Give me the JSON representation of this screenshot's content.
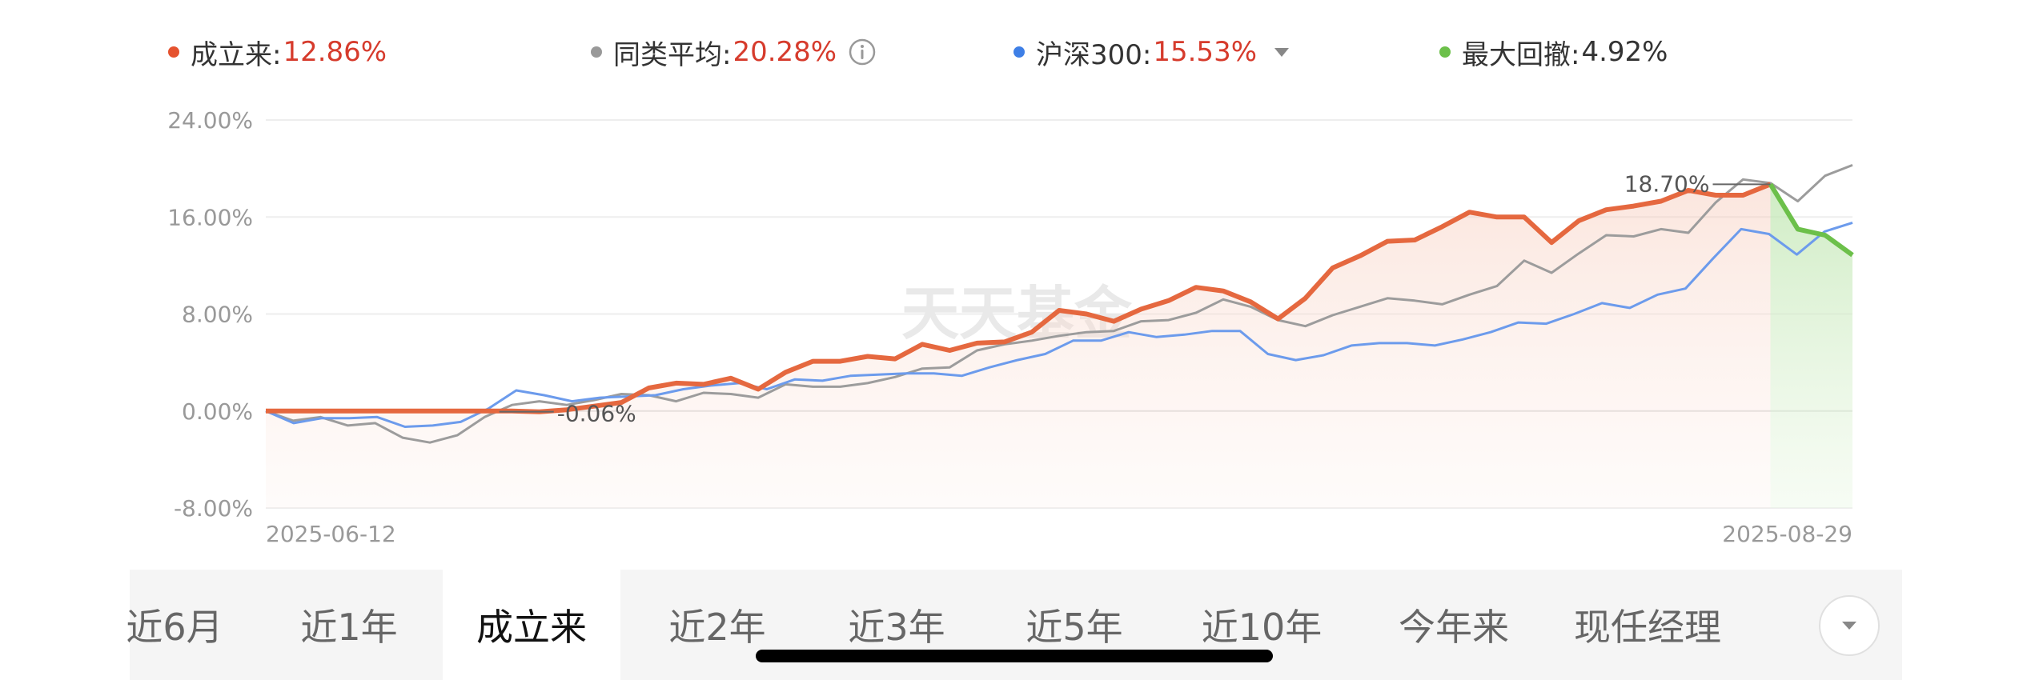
{
  "legend": {
    "fund": {
      "label": "成立来:",
      "value": "12.86%",
      "color": "#e5522f",
      "value_color": "#d63b2c"
    },
    "peer": {
      "label": "同类平均:",
      "value": "20.28%",
      "color": "#999999",
      "value_color": "#d63b2c"
    },
    "index": {
      "label": "沪深300:",
      "value": "15.53%",
      "color": "#3e7fe6",
      "value_color": "#d63b2c"
    },
    "drawdown": {
      "label": "最大回撤:",
      "value": "4.92%",
      "color": "#6cc04a",
      "value_color": "#333333"
    }
  },
  "watermark": "天天基金",
  "chart_data": {
    "type": "line",
    "start_date": "2025-06-12",
    "end_date": "2025-08-29",
    "x_labels": [
      "2025-06-12",
      "2025-08-29"
    ],
    "ylim": [
      -8,
      24
    ],
    "y_ticks": [
      24,
      16,
      8,
      0,
      -8
    ],
    "y_tick_labels": [
      "24.00%",
      "16.00%",
      "8.00%",
      "0.00%",
      "-8.00%"
    ],
    "grid": true,
    "series": [
      {
        "name": "成立来",
        "color": "#e5683f",
        "values": [
          0,
          0,
          0,
          0,
          0,
          0,
          0,
          0,
          0,
          0,
          -0.06,
          0.1,
          0.4,
          0.7,
          1.9,
          2.3,
          2.2,
          2.7,
          1.8,
          3.2,
          4.1,
          4.1,
          4.5,
          4.3,
          5.5,
          5.0,
          5.6,
          5.7,
          6.5,
          8.3,
          8.0,
          7.4,
          8.4,
          9.1,
          10.2,
          9.9,
          9.0,
          7.6,
          9.3,
          11.8,
          12.8,
          14.0,
          14.1,
          15.2,
          16.4,
          16.0,
          16.0,
          13.9,
          15.7,
          16.6,
          16.9,
          17.3,
          18.2,
          17.8,
          17.8,
          18.7,
          15.0,
          14.5,
          12.86
        ]
      },
      {
        "name": "同类平均",
        "color": "#9c9c9c",
        "values": [
          0,
          -0.8,
          -0.5,
          -1.2,
          -1.0,
          -2.2,
          -2.6,
          -2.0,
          -0.5,
          0.5,
          0.8,
          0.5,
          0.9,
          1.4,
          1.3,
          0.8,
          1.5,
          1.4,
          1.1,
          2.2,
          2.0,
          2.0,
          2.3,
          2.8,
          3.5,
          3.6,
          5.0,
          5.5,
          5.8,
          6.2,
          6.5,
          6.6,
          7.4,
          7.5,
          8.1,
          9.2,
          8.6,
          7.5,
          7.0,
          7.9,
          8.6,
          9.3,
          9.1,
          8.8,
          9.6,
          10.3,
          12.4,
          11.4,
          13.0,
          14.5,
          14.4,
          15.0,
          14.7,
          17.2,
          19.1,
          18.8,
          17.3,
          19.4,
          20.28
        ]
      },
      {
        "name": "沪深300",
        "color": "#6c9bec",
        "values": [
          0,
          -1.0,
          -0.6,
          -0.6,
          -0.5,
          -1.3,
          -1.2,
          -0.9,
          0.2,
          1.7,
          1.3,
          0.8,
          1.1,
          1.2,
          1.3,
          1.8,
          2.1,
          2.3,
          1.8,
          2.6,
          2.5,
          2.9,
          3.0,
          3.1,
          3.1,
          2.9,
          3.6,
          4.2,
          4.7,
          5.8,
          5.8,
          6.5,
          6.1,
          6.3,
          6.6,
          6.6,
          4.7,
          4.2,
          4.6,
          5.4,
          5.6,
          5.6,
          5.4,
          5.9,
          6.5,
          7.3,
          7.2,
          8.0,
          8.9,
          8.5,
          9.6,
          10.1,
          12.6,
          15.0,
          14.6,
          12.9,
          14.8,
          15.53
        ]
      }
    ],
    "drawdown": {
      "name": "最大回撤",
      "value": 4.92,
      "color": "#6cc04a",
      "from_index": 55,
      "to_index": 58
    },
    "annotations": [
      {
        "label": "18.70%",
        "series": "成立来",
        "index": 55
      },
      {
        "label": "-0.06%",
        "series": "成立来",
        "index": 10
      }
    ]
  },
  "tabs": [
    {
      "label": "近6月",
      "active": false
    },
    {
      "label": "近1年",
      "active": false
    },
    {
      "label": "成立来",
      "active": true
    },
    {
      "label": "近2年",
      "active": false
    },
    {
      "label": "近3年",
      "active": false
    },
    {
      "label": "近5年",
      "active": false
    },
    {
      "label": "近10年",
      "active": false
    },
    {
      "label": "今年来",
      "active": false
    },
    {
      "label": "现任经理",
      "active": false
    }
  ],
  "more_icon": "chevron-down-icon"
}
